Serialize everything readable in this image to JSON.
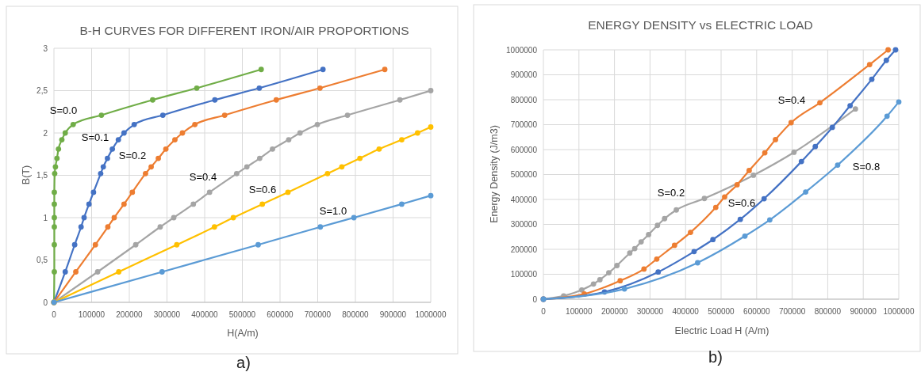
{
  "chart_data": [
    {
      "type": "line",
      "title": "B-H CURVES FOR DIFFERENT IRON/AIR PROPORTIONS",
      "xlabel": "H(A/m)",
      "ylabel": "B(T)",
      "annotations": [
        "a)"
      ],
      "xlim": [
        0,
        1000000
      ],
      "xticks": [
        0,
        100000,
        200000,
        300000,
        400000,
        500000,
        600000,
        700000,
        800000,
        900000,
        1000000
      ],
      "ylim": [
        0,
        3
      ],
      "yticks": [
        0,
        {
          "value": 0.5,
          "label": "0,5"
        },
        1,
        {
          "value": 1.5,
          "label": "1,5"
        },
        2,
        {
          "value": 2.5,
          "label": "2,5"
        },
        3
      ],
      "grid": true,
      "marker": "circle",
      "series": [
        {
          "name": "S=0.0",
          "color": "#70ad47",
          "x": [
            0,
            1000,
            1000,
            1000,
            1000,
            1000,
            1000,
            2000,
            4000,
            8000,
            12000,
            21000,
            30000,
            51000,
            126000,
            262000,
            379000,
            550000
          ],
          "values": [
            0,
            0.36,
            0.68,
            0.89,
            1.0,
            1.16,
            1.3,
            1.52,
            1.6,
            1.7,
            1.81,
            1.92,
            2.0,
            2.1,
            2.21,
            2.39,
            2.53,
            2.75
          ]
        },
        {
          "name": "S=0.1",
          "color": "#4472c4",
          "x": [
            0,
            30000,
            55000,
            72000,
            80000,
            93000,
            105000,
            124000,
            131000,
            142000,
            155000,
            171000,
            186000,
            213000,
            289000,
            427000,
            545000,
            714000
          ],
          "values": [
            0,
            0.36,
            0.68,
            0.89,
            1.0,
            1.16,
            1.3,
            1.52,
            1.6,
            1.7,
            1.81,
            1.92,
            2.0,
            2.1,
            2.21,
            2.39,
            2.53,
            2.75
          ]
        },
        {
          "name": "S=0.2",
          "color": "#ed7d31",
          "x": [
            0,
            58000,
            110000,
            143000,
            160000,
            186000,
            208000,
            243000,
            258000,
            277000,
            297000,
            321000,
            341000,
            374000,
            453000,
            590000,
            706000,
            878000
          ],
          "values": [
            0,
            0.36,
            0.68,
            0.89,
            1.0,
            1.16,
            1.3,
            1.52,
            1.6,
            1.7,
            1.81,
            1.92,
            2.0,
            2.1,
            2.21,
            2.39,
            2.53,
            2.75
          ]
        },
        {
          "name": "S=0.4",
          "color": "#a5a5a5",
          "x": [
            0,
            116000,
            217000,
            282000,
            318000,
            370000,
            413000,
            485000,
            512000,
            546000,
            580000,
            623000,
            653000,
            699000,
            779000,
            918000,
            1000000
          ],
          "values": [
            0,
            0.36,
            0.68,
            0.89,
            1.0,
            1.16,
            1.3,
            1.52,
            1.6,
            1.7,
            1.81,
            1.92,
            2.0,
            2.1,
            2.21,
            2.39,
            2.5
          ]
        },
        {
          "name": "S=0.6",
          "color": "#ffc000",
          "x": [
            0,
            172000,
            326000,
            426000,
            476000,
            553000,
            621000,
            726000,
            764000,
            812000,
            863000,
            923000,
            965000,
            1000000
          ],
          "values": [
            0,
            0.36,
            0.68,
            0.89,
            1.0,
            1.16,
            1.3,
            1.52,
            1.6,
            1.7,
            1.81,
            1.92,
            2.0,
            2.07
          ]
        },
        {
          "name": "S=1.0",
          "color": "#5b9bd5",
          "x": [
            0,
            287000,
            542000,
            707000,
            796000,
            923000,
            1000000
          ],
          "values": [
            0,
            0.36,
            0.68,
            0.89,
            1.0,
            1.16,
            1.26
          ]
        }
      ]
    },
    {
      "type": "line",
      "title": "ENERGY DENSITY vs ELECTRIC LOAD",
      "xlabel": "Electric Load H  (A/m)",
      "ylabel": "Energy Density (J/m3)",
      "annotations": [
        "b)"
      ],
      "xlim": [
        0,
        1000000
      ],
      "xticks": [
        0,
        100000,
        200000,
        300000,
        400000,
        500000,
        600000,
        700000,
        800000,
        900000,
        1000000
      ],
      "ylim": [
        0,
        1000000
      ],
      "yticks": [
        0,
        100000,
        200000,
        300000,
        400000,
        500000,
        600000,
        700000,
        800000,
        900000,
        1000000
      ],
      "grid": true,
      "marker": "circle",
      "series": [
        {
          "name": "S=0.2",
          "color": "#a5a5a5",
          "x": [
            0,
            57000,
            108000,
            141000,
            159000,
            184000,
            207000,
            243000,
            257000,
            275000,
            296000,
            321000,
            341000,
            374000,
            453000,
            591000,
            705000,
            878000
          ],
          "values": [
            0,
            13000,
            37000,
            61000,
            78000,
            106000,
            135000,
            185000,
            203000,
            230000,
            259000,
            296000,
            323000,
            358000,
            404000,
            497000,
            589000,
            763000
          ]
        },
        {
          "name": "S=0.4",
          "color": "#ed7d31",
          "x": [
            0,
            115000,
            216000,
            283000,
            319000,
            369000,
            414000,
            485000,
            510000,
            545000,
            579000,
            623000,
            653000,
            697000,
            778000,
            918000,
            970000
          ],
          "values": [
            0,
            21000,
            74000,
            121000,
            161000,
            216000,
            268000,
            368000,
            410000,
            459000,
            516000,
            587000,
            640000,
            708000,
            788000,
            941000,
            1000000
          ]
        },
        {
          "name": "S=0.6",
          "color": "#4472c4",
          "x": [
            0,
            172000,
            323000,
            424000,
            477000,
            554000,
            621000,
            726000,
            765000,
            813000,
            863000,
            924000,
            965000,
            991000
          ],
          "values": [
            0,
            29000,
            109000,
            191000,
            239000,
            320000,
            403000,
            552000,
            612000,
            689000,
            776000,
            882000,
            958000,
            1000000
          ]
        },
        {
          "name": "S=0.8",
          "color": "#5b9bd5",
          "x": [
            0,
            228000,
            434000,
            567000,
            637000,
            738000,
            828000,
            967000,
            1000000
          ],
          "values": [
            0,
            41000,
            146000,
            253000,
            318000,
            430000,
            538000,
            734000,
            791000
          ]
        }
      ]
    }
  ]
}
